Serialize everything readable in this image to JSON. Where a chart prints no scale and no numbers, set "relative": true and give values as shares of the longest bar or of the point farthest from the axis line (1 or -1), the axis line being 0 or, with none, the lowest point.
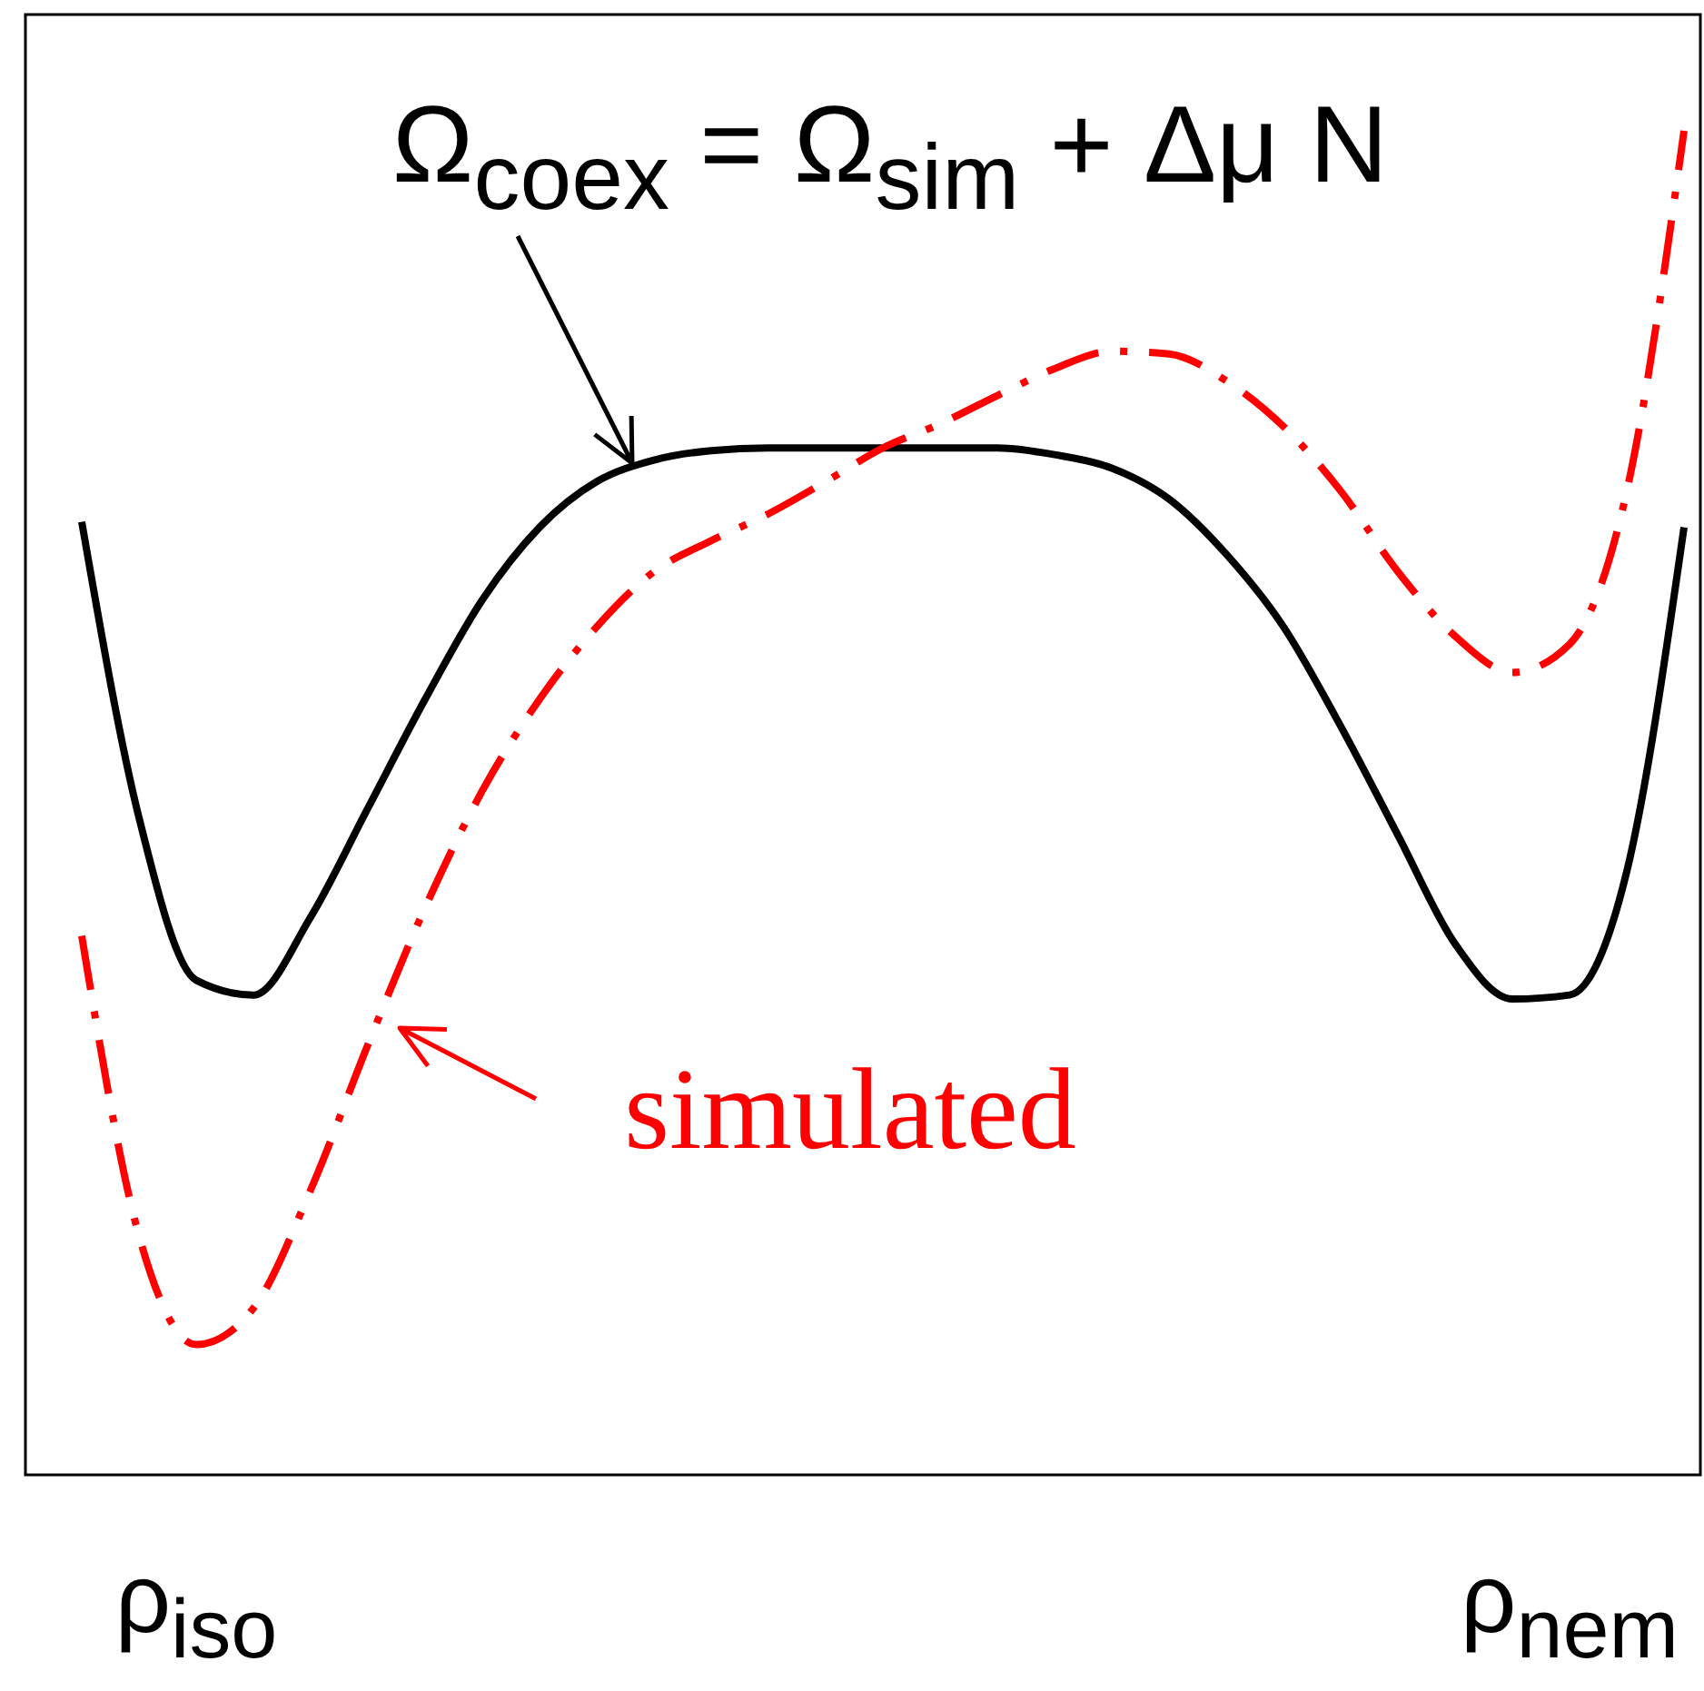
{
  "chart_data": {
    "type": "line",
    "relative": true,
    "tick_labels": "x",
    "grid": false,
    "marker": "none",
    "categories": [
      null,
      null,
      "ρ$_{iso}$",
      null,
      null,
      null,
      null,
      null,
      null,
      null,
      null,
      null,
      null,
      null,
      null,
      null,
      null,
      null,
      null,
      null,
      null,
      null,
      null,
      null,
      null,
      null,
      "ρ$_{nem}$",
      null,
      null
    ],
    "series": [
      {
        "color": "#000000",
        "line_style": "solid",
        "values": [
          0.709,
          0.489,
          0.368,
          0.357,
          0.415,
          0.496,
          0.577,
          0.651,
          0.705,
          0.739,
          0.755,
          0.762,
          0.764,
          0.764,
          0.764,
          0.764,
          0.764,
          0.759,
          0.749,
          0.726,
          0.685,
          0.631,
          0.557,
          0.476,
          0.395,
          0.354,
          0.357,
          0.449,
          0.705
        ]
      },
      {
        "color": "#ff0000",
        "line_style": "dashdot",
        "values": [
          0.401,
          0.178,
          0.097,
          0.124,
          0.212,
          0.32,
          0.422,
          0.509,
          0.577,
          0.631,
          0.672,
          0.695,
          0.715,
          0.739,
          0.764,
          0.782,
          0.803,
          0.823,
          0.836,
          0.834,
          0.814,
          0.78,
          0.732,
          0.672,
          0.624,
          0.597,
          0.618,
          0.732,
          1
        ]
      }
    ],
    "annotations": [
      "Ω$_{coex}$ = Ω$_{sim}$ + Δμ N",
      "simulated"
    ]
  }
}
